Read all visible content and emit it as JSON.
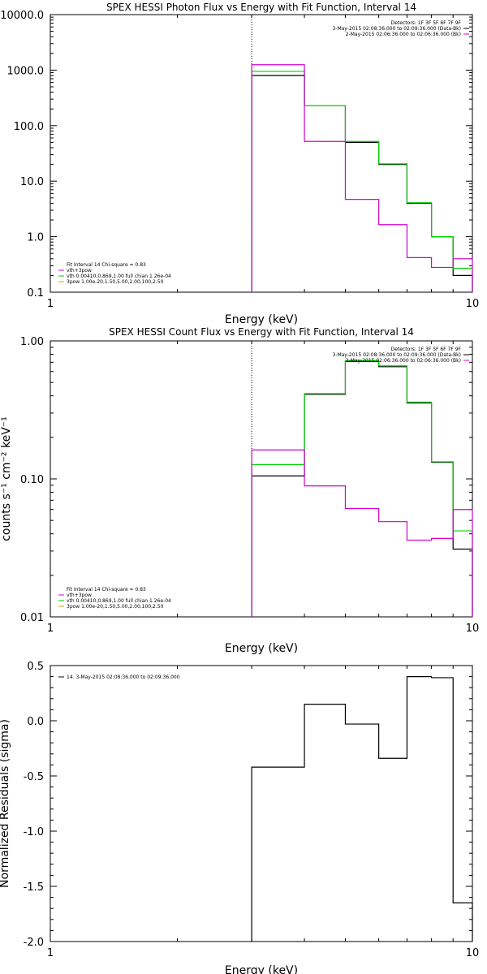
{
  "chart_data": [
    {
      "type": "line",
      "title": "SPEX HESSI Photon Flux vs Energy with Fit Function, Interval 14",
      "xlabel": "Energy (keV)",
      "ylabel": "",
      "xscale": "log",
      "yscale": "log",
      "xlim": [
        1,
        10
      ],
      "ylim": [
        0.1,
        10000
      ],
      "x_ticks": [
        "1",
        "10"
      ],
      "y_ticks": [
        "0.1",
        "1.0",
        "10.0",
        "100.0",
        "1000.0",
        "10000.0"
      ],
      "marker_x": 3,
      "bin_edges": [
        3,
        4,
        5,
        6,
        7,
        8,
        9,
        10
      ],
      "series": [
        {
          "color": "#000000",
          "values": [
            800,
            230,
            50,
            20,
            4,
            1,
            0.2
          ]
        },
        {
          "color": "#00d000",
          "values": [
            950,
            230,
            52,
            20.5,
            4.1,
            1.0,
            0.27
          ]
        },
        {
          "color": "#d000d0",
          "values": [
            1250,
            52,
            4.7,
            1.65,
            0.42,
            0.28,
            0.4
          ]
        }
      ],
      "legend_tr": [
        "Detectors: 1F 3F 5F 6F 7F 9F",
        "3-May-2015 02:08:36.000 to 02:09:36.000 (Data-Bk)",
        "2-May-2015 02:06:36.000 to 02:06:36.000 (Bk)"
      ],
      "legend_tr_colors": [
        "",
        "#000000",
        "#d000d0"
      ],
      "legend_bl": [
        "Fit Interval 14   Chi-square = 0.83",
        "vth+3pow",
        "vth 0.00410,0.869,1.00   full chian 1.26e-04",
        "3pow 1.00e-20,1.50,5.00,2.00,100,2.50"
      ],
      "legend_bl_colors": [
        "",
        "#d000d0",
        "#00d000",
        "#e0a000"
      ]
    },
    {
      "type": "line",
      "title": "SPEX HESSI Count Flux vs Energy with Fit Function, Interval 14",
      "xlabel": "Energy (keV)",
      "ylabel": "counts s⁻¹ cm⁻² keV⁻¹",
      "xscale": "log",
      "yscale": "log",
      "xlim": [
        1,
        10
      ],
      "ylim": [
        0.01,
        1
      ],
      "x_ticks": [
        "1",
        "10"
      ],
      "y_ticks": [
        "0.01",
        "0.10",
        "1.00"
      ],
      "marker_x": 3,
      "bin_edges": [
        3,
        4,
        5,
        6,
        7,
        8,
        9,
        10
      ],
      "series": [
        {
          "color": "#000000",
          "values": [
            0.105,
            0.41,
            0.71,
            0.65,
            0.355,
            0.132,
            0.031
          ]
        },
        {
          "color": "#00d000",
          "values": [
            0.127,
            0.415,
            0.72,
            0.66,
            0.36,
            0.133,
            0.042
          ]
        },
        {
          "color": "#d000d0",
          "values": [
            0.162,
            0.089,
            0.061,
            0.049,
            0.036,
            0.037,
            0.06
          ]
        }
      ],
      "legend_tr": [
        "Detectors: 1F 3F 5F 6F 7F 9F",
        "3-May-2015 02:08:36.000 to 02:09:36.000 (Data-Bk)",
        "2-May-2015 02:06:36.000 to 02:06:36.000 (Bk)"
      ],
      "legend_tr_colors": [
        "",
        "#000000",
        "#d000d0"
      ],
      "legend_bl": [
        "Fit Interval 14   Chi-square = 0.83",
        "vth+3pow",
        "vth 0.00410,0.869,1.00   full chian 1.26e-04",
        "3pow 1.00e-20,1.50,5.00,2.00,100,2.50"
      ],
      "legend_bl_colors": [
        "",
        "#d000d0",
        "#00d000",
        "#e0a000"
      ]
    },
    {
      "type": "line",
      "title": "",
      "xlabel": "Energy (keV)",
      "ylabel": "Normalized Residuals (sigma)",
      "xscale": "log",
      "yscale": "linear",
      "xlim": [
        1,
        10
      ],
      "ylim": [
        -2,
        0.5
      ],
      "x_ticks": [
        "1",
        "10"
      ],
      "y_ticks": [
        "-2.0",
        "-1.5",
        "-1.0",
        "-0.5",
        "0.0",
        "0.5"
      ],
      "bin_edges": [
        3,
        4,
        5,
        6,
        7,
        8,
        9,
        10
      ],
      "series": [
        {
          "color": "#000000",
          "values": [
            -0.42,
            0.15,
            -0.03,
            -0.34,
            0.4,
            0.39,
            -1.65
          ]
        }
      ],
      "legend_tl": [
        "14.  3-May-2015 02:08:36.000 to 02:09:36.000"
      ],
      "legend_tl_colors": [
        "#000000"
      ]
    }
  ]
}
